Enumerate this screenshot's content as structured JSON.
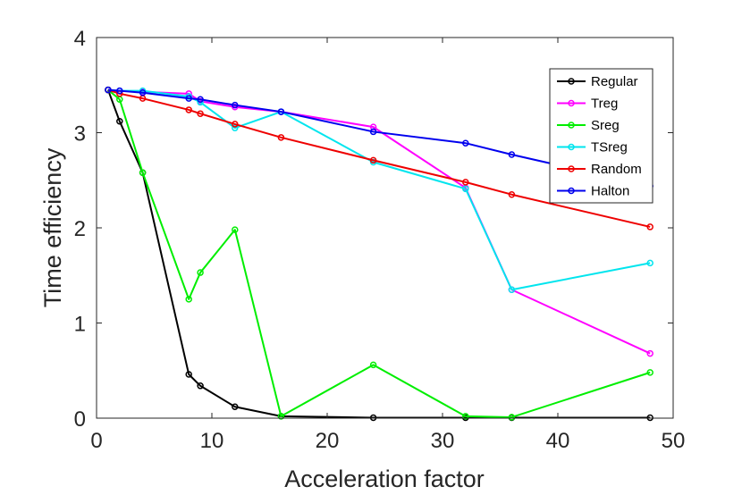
{
  "chart_data": {
    "type": "line",
    "title": "",
    "xlabel": "Acceleration factor",
    "ylabel": "Time efficiency",
    "xlim": [
      0,
      50
    ],
    "ylim": [
      0,
      4
    ],
    "xticks": [
      "0",
      "10",
      "20",
      "30",
      "40",
      "50"
    ],
    "yticks": [
      "0",
      "1",
      "2",
      "3",
      "4"
    ],
    "grid": false,
    "legend_position": "top-right",
    "series": [
      {
        "name": "Regular",
        "color": "#000000",
        "x": [
          1,
          2,
          4,
          8,
          9,
          12,
          16,
          24,
          32,
          36,
          48
        ],
        "y": [
          3.45,
          3.12,
          2.58,
          0.46,
          0.34,
          0.12,
          0.02,
          0.005,
          0.005,
          0.005,
          0.005
        ]
      },
      {
        "name": "Treg",
        "color": "#ff00ff",
        "x": [
          1,
          2,
          4,
          8,
          9,
          12,
          16,
          24,
          32,
          36,
          48
        ],
        "y": [
          3.45,
          3.44,
          3.43,
          3.41,
          3.33,
          3.27,
          3.22,
          3.06,
          2.42,
          1.35,
          0.68
        ]
      },
      {
        "name": "Sreg",
        "color": "#00ee00",
        "x": [
          1,
          2,
          4,
          8,
          9,
          12,
          16,
          24,
          32,
          36,
          48
        ],
        "y": [
          3.45,
          3.35,
          2.58,
          1.25,
          1.53,
          1.98,
          0.02,
          0.56,
          0.02,
          0.01,
          0.48
        ]
      },
      {
        "name": "TSreg",
        "color": "#00e5ee",
        "x": [
          1,
          2,
          4,
          8,
          9,
          12,
          16,
          24,
          32,
          36,
          48
        ],
        "y": [
          3.45,
          3.44,
          3.44,
          3.38,
          3.32,
          3.05,
          3.22,
          2.69,
          2.41,
          1.35,
          1.63
        ]
      },
      {
        "name": "Random",
        "color": "#ee0000",
        "x": [
          1,
          2,
          4,
          8,
          9,
          12,
          16,
          24,
          32,
          36,
          48
        ],
        "y": [
          3.45,
          3.41,
          3.36,
          3.24,
          3.2,
          3.09,
          2.95,
          2.71,
          2.48,
          2.35,
          2.01
        ]
      },
      {
        "name": "Halton",
        "color": "#0000ee",
        "x": [
          1,
          2,
          4,
          8,
          9,
          12,
          16,
          24,
          32,
          36,
          48
        ],
        "y": [
          3.45,
          3.44,
          3.42,
          3.36,
          3.35,
          3.29,
          3.22,
          3.01,
          2.89,
          2.77,
          2.44
        ]
      }
    ]
  }
}
